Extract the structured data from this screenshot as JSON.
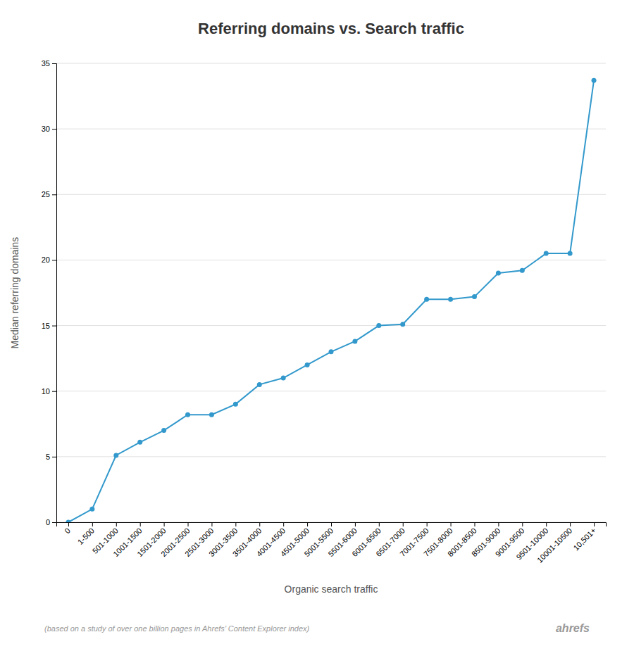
{
  "chart_data": {
    "type": "line",
    "title": "Referring domains vs. Search traffic",
    "x_label": "Organic search traffic",
    "y_label": "Median referring domains",
    "annotations": [
      "(based on a study of over one billion pages in Ahrefs’ Content Explorer index)",
      "ahrefs"
    ],
    "categories": [
      "0",
      "1-500",
      "501-1000",
      "1001-1500",
      "1501-2000",
      "2001-2500",
      "2501-3000",
      "3001-3500",
      "3501-4000",
      "4001-4500",
      "4501-5000",
      "5001-5500",
      "5501-6000",
      "6001-6500",
      "6501-7000",
      "7001-7500",
      "7501-8000",
      "8001-8500",
      "8501-9000",
      "9001-9500",
      "9501-10000",
      "10001-10500",
      "10,501+"
    ],
    "values": [
      0,
      1,
      5.1,
      6.1,
      7.0,
      8.2,
      8.2,
      9.0,
      10.5,
      11.0,
      12.0,
      13.0,
      13.8,
      15.0,
      15.1,
      17.0,
      17.0,
      17.2,
      19.0,
      19.2,
      20.5,
      20.5,
      33.7
    ],
    "color": "#3399cc",
    "marker": "circle",
    "ylim": [
      0,
      35
    ],
    "yticks": [
      0,
      5,
      10,
      15,
      20,
      25,
      30,
      35
    ],
    "grid": true
  }
}
